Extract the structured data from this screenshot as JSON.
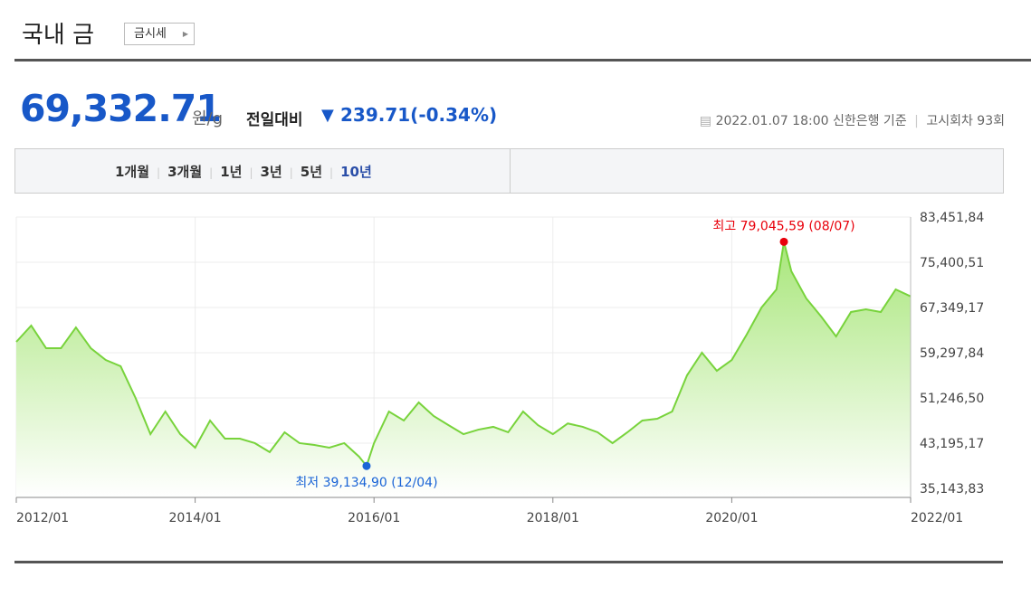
{
  "header": {
    "title": "국내 금",
    "button": "금시세"
  },
  "price": {
    "value": "69,332.71",
    "unit": "원/g",
    "change_label": "전일대비",
    "change": "239.71(-0.34%)"
  },
  "info": {
    "source": "2022.01.07 18:00 신한은행 기준",
    "round": "고시회차 93회"
  },
  "tabs": [
    "1개월",
    "3개월",
    "1년",
    "3년",
    "5년",
    "10년"
  ],
  "selected_tab": 5,
  "chart_data": {
    "type": "line",
    "x": [
      "2012/01",
      "2012/03",
      "2012/05",
      "2012/07",
      "2012/09",
      "2012/11",
      "2013/01",
      "2013/03",
      "2013/05",
      "2013/07",
      "2013/09",
      "2013/11",
      "2014/01",
      "2014/03",
      "2014/05",
      "2014/07",
      "2014/09",
      "2014/11",
      "2015/01",
      "2015/03",
      "2015/05",
      "2015/07",
      "2015/09",
      "2015/11",
      "2015/12",
      "2016/01",
      "2016/03",
      "2016/05",
      "2016/07",
      "2016/09",
      "2016/11",
      "2017/01",
      "2017/03",
      "2017/05",
      "2017/07",
      "2017/09",
      "2017/11",
      "2018/01",
      "2018/03",
      "2018/05",
      "2018/07",
      "2018/09",
      "2018/11",
      "2019/01",
      "2019/03",
      "2019/05",
      "2019/07",
      "2019/09",
      "2019/11",
      "2020/01",
      "2020/03",
      "2020/05",
      "2020/07",
      "2020/08",
      "2020/09",
      "2020/11",
      "2021/01",
      "2021/03",
      "2021/05",
      "2021/07",
      "2021/09",
      "2021/11",
      "2022/01"
    ],
    "series": [
      {
        "color": "#78d33c",
        "values": [
          61230,
          64130,
          60100,
          60100,
          63800,
          60100,
          58000,
          56900,
          51250,
          44800,
          48830,
          44800,
          42390,
          47220,
          44000,
          44000,
          43200,
          41600,
          45130,
          43200,
          42870,
          42390,
          43200,
          40780,
          39134.9,
          43200,
          48830,
          47220,
          50440,
          48030,
          46400,
          44800,
          45600,
          46100,
          45130,
          48830,
          46400,
          44800,
          46700,
          46100,
          45130,
          43200,
          45130,
          47220,
          47540,
          48830,
          55270,
          59300,
          56080,
          58000,
          62520,
          67350,
          70570,
          79045.59,
          73790,
          68960,
          65740,
          62200,
          66550,
          67030,
          66550,
          70570,
          69330
        ]
      }
    ],
    "xlim": [
      "2012/01",
      "2022/01"
    ],
    "xticks": [
      "2012/01",
      "2014/01",
      "2016/01",
      "2018/01",
      "2020/01",
      "2022/01"
    ],
    "ylim": [
      35143.83,
      83451.84
    ],
    "yticks": [
      {
        "value": 35143.83,
        "label": "35,143,83"
      },
      {
        "value": 43195.17,
        "label": "43,195,17"
      },
      {
        "value": 51246.5,
        "label": "51,246,50"
      },
      {
        "value": 59297.84,
        "label": "59,297,84"
      },
      {
        "value": 67349.17,
        "label": "67,349,17"
      },
      {
        "value": 75400.51,
        "label": "75,400,51"
      },
      {
        "value": 83451.84,
        "label": "83,451,84"
      }
    ],
    "grid": true,
    "high_label": "최고 79,045,59 (08/07)",
    "high_color": "#e8000b",
    "low_label": "최저 39,134,90 (12/04)",
    "low_color": "#1a64d6"
  }
}
